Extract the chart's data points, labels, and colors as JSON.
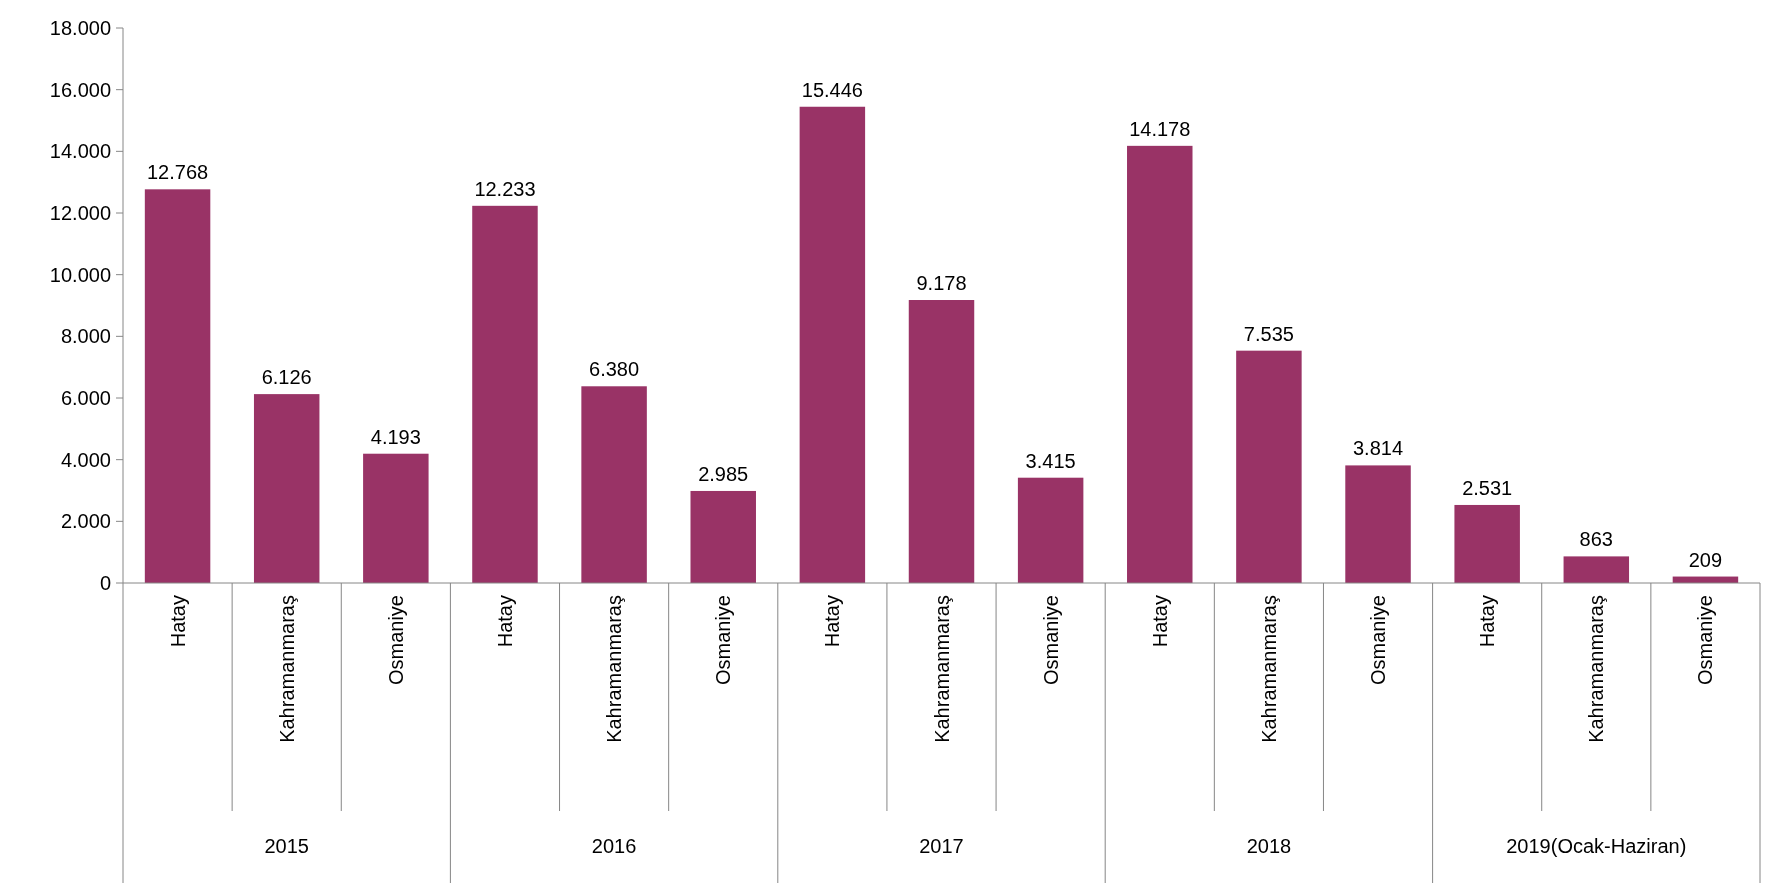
{
  "chart_data": {
    "type": "bar",
    "categories": [
      "Hatay",
      "Kahramanmaraş",
      "Osmaniye",
      "Hatay",
      "Kahramanmaraş",
      "Osmaniye",
      "Hatay",
      "Kahramanmaraş",
      "Osmaniye",
      "Hatay",
      "Kahramanmaraş",
      "Osmaniye",
      "Hatay",
      "Kahramanmaraş",
      "Osmaniye"
    ],
    "values": [
      12768,
      6126,
      4193,
      12233,
      6380,
      2985,
      15446,
      9178,
      3415,
      14178,
      7535,
      3814,
      2531,
      863,
      209
    ],
    "color": "#993366",
    "ylim": [
      0,
      18000
    ],
    "yticks": [
      {
        "value": 0,
        "label": "0"
      },
      {
        "value": 2000,
        "label": "2.000"
      },
      {
        "value": 4000,
        "label": "4.000"
      },
      {
        "value": 6000,
        "label": "6.000"
      },
      {
        "value": 8000,
        "label": "8.000"
      },
      {
        "value": 10000,
        "label": "10.000"
      },
      {
        "value": 12000,
        "label": "12.000"
      },
      {
        "value": 14000,
        "label": "14.000"
      },
      {
        "value": 16000,
        "label": "16.000"
      },
      {
        "value": 18000,
        "label": "18.000"
      }
    ],
    "value_labels": [
      "12.768",
      "6.126",
      "4.193",
      "12.233",
      "6.380",
      "2.985",
      "15.446",
      "9.178",
      "3.415",
      "14.178",
      "7.535",
      "3.814",
      "2.531",
      "863",
      "209"
    ],
    "annotations": [
      "2015",
      "2016",
      "2017",
      "2018",
      "2019(Ocak-Haziran)"
    ]
  }
}
